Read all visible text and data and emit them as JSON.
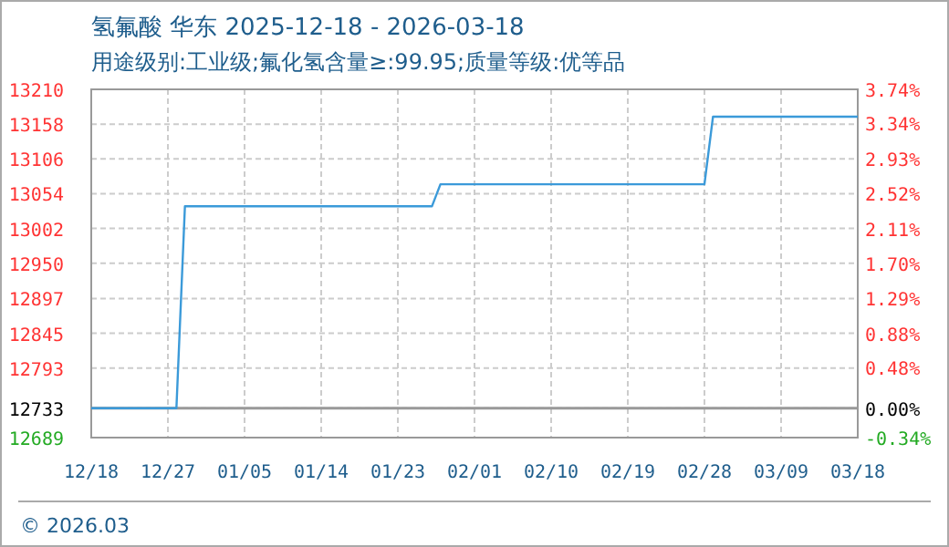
{
  "chart_data": {
    "type": "line",
    "title": "氢氟酸 华东 2025-12-18 - 2026-03-18",
    "subtitle": "用途级别:工业级;氟化氢含量≥:99.95;质量等级:优等品",
    "annotations": [
      "© 2026.03"
    ],
    "series": [
      {
        "color": "#3b9ad9",
        "x": [
          "2025-12-18",
          "2025-12-28",
          "2025-12-29",
          "2026-01-27",
          "2026-01-28",
          "2026-02-28",
          "2026-03-01",
          "2026-03-18"
        ],
        "values": [
          12733,
          12733,
          13035,
          13035,
          13068,
          13068,
          13169,
          13169
        ]
      }
    ],
    "xlim": [
      "2025-12-18",
      "2026-03-18"
    ],
    "xticks": [
      {
        "value": "2025-12-18",
        "label": "12/18"
      },
      {
        "value": "2025-12-27",
        "label": "12/27"
      },
      {
        "value": "2026-01-05",
        "label": "01/05"
      },
      {
        "value": "2026-01-14",
        "label": "01/14"
      },
      {
        "value": "2026-01-23",
        "label": "01/23"
      },
      {
        "value": "2026-02-01",
        "label": "02/01"
      },
      {
        "value": "2026-02-10",
        "label": "02/10"
      },
      {
        "value": "2026-02-19",
        "label": "02/19"
      },
      {
        "value": "2026-02-28",
        "label": "02/28"
      },
      {
        "value": "2026-03-09",
        "label": "03/09"
      },
      {
        "value": "2026-03-18",
        "label": "03/18"
      }
    ],
    "ylim": [
      12689,
      13210
    ],
    "yticks": [
      12689,
      12733,
      12793,
      12845,
      12897,
      12950,
      13002,
      13054,
      13106,
      13158,
      13210
    ],
    "y2lim": [
      -0.34,
      3.74
    ],
    "y2ticks": [
      {
        "value": -0.34,
        "label": "-0.34%"
      },
      {
        "value": 0,
        "label": "0.00%"
      },
      {
        "value": 0.48,
        "label": "0.48%"
      },
      {
        "value": 0.88,
        "label": "0.88%"
      },
      {
        "value": 1.29,
        "label": "1.29%"
      },
      {
        "value": 1.7,
        "label": "1.70%"
      },
      {
        "value": 2.11,
        "label": "2.11%"
      },
      {
        "value": 2.52,
        "label": "2.52%"
      },
      {
        "value": 2.93,
        "label": "2.93%"
      },
      {
        "value": 3.34,
        "label": "3.34%"
      },
      {
        "value": 3.74,
        "label": "3.74%"
      }
    ],
    "ref_lines": [
      {
        "axis": "y",
        "value": 12733,
        "color": "#999999"
      }
    ],
    "grid": true,
    "marker": "none",
    "line_style": "solid"
  }
}
